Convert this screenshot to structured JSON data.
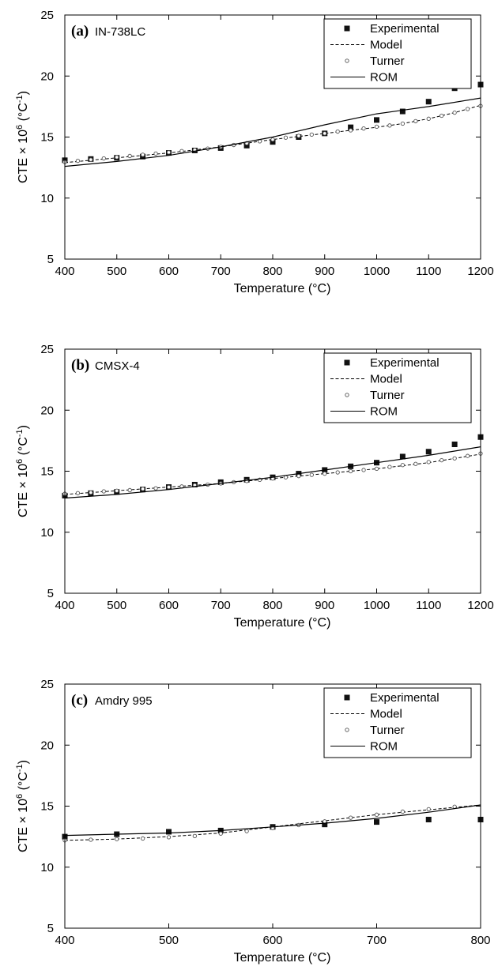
{
  "chart_data": [
    {
      "type": "line",
      "panel_label": "(a)",
      "panel_title": "IN-738LC",
      "xlabel": "Temperature (°C)",
      "ylabel": {
        "prefix": "CTE × 10",
        "exp1": "6",
        "mid": " (°C",
        "exp2": "-1",
        "suffix": ")"
      },
      "xlim": [
        400,
        1200
      ],
      "ylim": [
        5,
        25
      ],
      "xticks": [
        400,
        500,
        600,
        700,
        800,
        900,
        1000,
        1100,
        1200
      ],
      "yticks": [
        5,
        10,
        15,
        20,
        25
      ],
      "grid": false,
      "legend_position": "top-right",
      "series": [
        {
          "name": "Experimental",
          "style": "square-markers",
          "x": [
            400,
            450,
            500,
            550,
            600,
            650,
            700,
            750,
            800,
            850,
            900,
            950,
            1000,
            1050,
            1100,
            1150,
            1200
          ],
          "y": [
            13.1,
            13.2,
            13.3,
            13.4,
            13.7,
            13.9,
            14.1,
            14.3,
            14.6,
            15.0,
            15.3,
            15.8,
            16.4,
            17.1,
            17.9,
            19.0,
            19.3
          ]
        },
        {
          "name": "Model",
          "style": "dashed",
          "x": [
            400,
            500,
            600,
            700,
            800,
            900,
            1000,
            1050,
            1100,
            1150,
            1200
          ],
          "y": [
            12.9,
            13.3,
            13.7,
            14.2,
            14.8,
            15.3,
            15.8,
            16.1,
            16.5,
            17.0,
            17.6
          ]
        },
        {
          "name": "Turner",
          "style": "open-circles",
          "x": [
            400,
            425,
            450,
            475,
            500,
            525,
            550,
            575,
            600,
            625,
            650,
            675,
            700,
            725,
            750,
            775,
            800,
            825,
            850,
            875,
            900,
            925,
            950,
            975,
            1000,
            1025,
            1050,
            1075,
            1100,
            1125,
            1150,
            1175,
            1200
          ],
          "y": [
            12.95,
            13.05,
            13.15,
            13.25,
            13.35,
            13.45,
            13.55,
            13.65,
            13.75,
            13.85,
            13.95,
            14.05,
            14.2,
            14.35,
            14.5,
            14.65,
            14.8,
            14.95,
            15.1,
            15.2,
            15.3,
            15.45,
            15.55,
            15.7,
            15.85,
            15.95,
            16.1,
            16.3,
            16.5,
            16.75,
            17.0,
            17.3,
            17.55
          ]
        },
        {
          "name": "ROM",
          "style": "solid",
          "x": [
            400,
            500,
            600,
            700,
            800,
            900,
            1000,
            1100,
            1200
          ],
          "y": [
            12.6,
            13.0,
            13.5,
            14.2,
            15.0,
            16.0,
            16.9,
            17.5,
            18.2
          ]
        }
      ]
    },
    {
      "type": "line",
      "panel_label": "(b)",
      "panel_title": "CMSX-4",
      "xlabel": "Temperature (°C)",
      "ylabel": {
        "prefix": "CTE × 10",
        "exp1": "6",
        "mid": " (°C",
        "exp2": "-1",
        "suffix": ")"
      },
      "xlim": [
        400,
        1200
      ],
      "ylim": [
        5,
        25
      ],
      "xticks": [
        400,
        500,
        600,
        700,
        800,
        900,
        1000,
        1100,
        1200
      ],
      "yticks": [
        5,
        10,
        15,
        20,
        25
      ],
      "grid": false,
      "legend_position": "top-right",
      "series": [
        {
          "name": "Experimental",
          "style": "square-markers",
          "x": [
            400,
            450,
            500,
            550,
            600,
            650,
            700,
            750,
            800,
            850,
            900,
            950,
            1000,
            1050,
            1100,
            1150,
            1200
          ],
          "y": [
            13.0,
            13.2,
            13.3,
            13.5,
            13.7,
            13.9,
            14.1,
            14.3,
            14.5,
            14.8,
            15.1,
            15.4,
            15.7,
            16.2,
            16.6,
            17.2,
            17.8
          ]
        },
        {
          "name": "Model",
          "style": "dashed",
          "x": [
            400,
            500,
            600,
            700,
            800,
            900,
            1000,
            1100,
            1200
          ],
          "y": [
            13.1,
            13.4,
            13.7,
            14.0,
            14.4,
            14.8,
            15.2,
            15.7,
            16.4
          ]
        },
        {
          "name": "Turner",
          "style": "open-circles",
          "x": [
            400,
            425,
            450,
            475,
            500,
            525,
            550,
            575,
            600,
            625,
            650,
            675,
            700,
            725,
            750,
            775,
            800,
            825,
            850,
            875,
            900,
            925,
            950,
            975,
            1000,
            1025,
            1050,
            1075,
            1100,
            1125,
            1150,
            1175,
            1200
          ],
          "y": [
            13.15,
            13.2,
            13.25,
            13.35,
            13.4,
            13.45,
            13.55,
            13.6,
            13.7,
            13.75,
            13.85,
            13.9,
            14.0,
            14.1,
            14.2,
            14.3,
            14.4,
            14.5,
            14.6,
            14.7,
            14.8,
            14.9,
            15.0,
            15.1,
            15.2,
            15.35,
            15.5,
            15.6,
            15.75,
            15.9,
            16.05,
            16.25,
            16.45
          ]
        },
        {
          "name": "ROM",
          "style": "solid",
          "x": [
            400,
            500,
            600,
            700,
            800,
            900,
            1000,
            1100,
            1200
          ],
          "y": [
            12.8,
            13.1,
            13.5,
            14.0,
            14.5,
            15.1,
            15.7,
            16.3,
            17.0
          ]
        }
      ]
    },
    {
      "type": "line",
      "panel_label": "(c)",
      "panel_title": "Amdry 995",
      "xlabel": "Temperature (°C)",
      "ylabel": {
        "prefix": "CTE × 10",
        "exp1": "6",
        "mid": " (°C",
        "exp2": "-1",
        "suffix": ")"
      },
      "xlim": [
        400,
        800
      ],
      "ylim": [
        5,
        25
      ],
      "xticks": [
        400,
        500,
        600,
        700,
        800
      ],
      "yticks": [
        5,
        10,
        15,
        20,
        25
      ],
      "grid": false,
      "legend_position": "top-right",
      "series": [
        {
          "name": "Experimental",
          "style": "square-markers",
          "x": [
            400,
            450,
            500,
            550,
            600,
            650,
            700,
            750,
            800
          ],
          "y": [
            12.5,
            12.7,
            12.9,
            13.0,
            13.3,
            13.5,
            13.7,
            13.9,
            13.9
          ]
        },
        {
          "name": "Model",
          "style": "dashed",
          "x": [
            400,
            450,
            500,
            550,
            600,
            650,
            700,
            750,
            800
          ],
          "y": [
            12.2,
            12.3,
            12.5,
            12.8,
            13.3,
            13.8,
            14.3,
            14.7,
            15.1
          ]
        },
        {
          "name": "Turner",
          "style": "open-circles",
          "x": [
            400,
            425,
            450,
            475,
            500,
            525,
            550,
            575,
            600,
            625,
            650,
            675,
            700,
            725,
            750,
            775
          ],
          "y": [
            12.2,
            12.25,
            12.3,
            12.35,
            12.45,
            12.55,
            12.75,
            12.95,
            13.2,
            13.45,
            13.75,
            14.05,
            14.3,
            14.55,
            14.75,
            14.95
          ]
        },
        {
          "name": "ROM",
          "style": "solid",
          "x": [
            400,
            450,
            500,
            550,
            600,
            650,
            700,
            750,
            800
          ],
          "y": [
            12.6,
            12.7,
            12.8,
            13.0,
            13.3,
            13.6,
            14.0,
            14.5,
            15.1
          ]
        }
      ]
    }
  ]
}
